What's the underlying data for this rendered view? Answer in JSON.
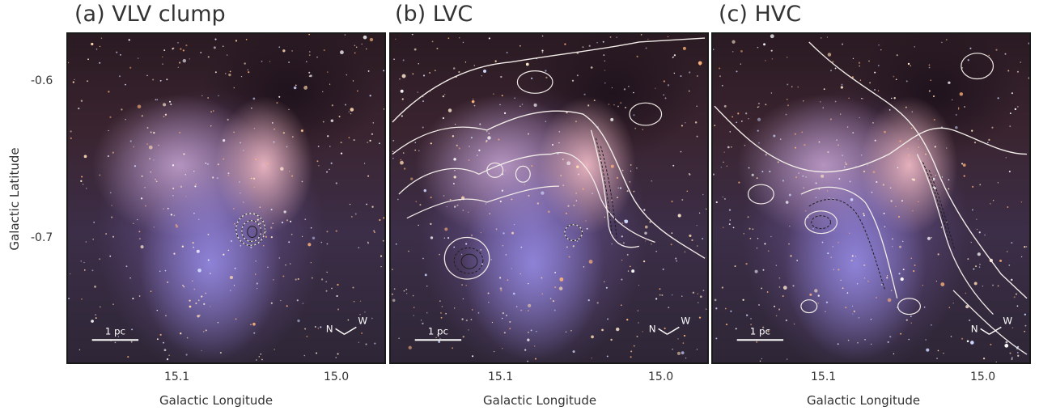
{
  "panels": [
    {
      "title": "(a) VLV clump",
      "scale_bar": "1 pc",
      "compass_n": "N",
      "compass_w": "W"
    },
    {
      "title": "(b) LVC",
      "scale_bar": "1 pc",
      "compass_n": "N",
      "compass_w": "W"
    },
    {
      "title": "(c) HVC",
      "scale_bar": "1 pc",
      "compass_n": "N",
      "compass_w": "W"
    }
  ],
  "axes": {
    "y_label": "Galactic Latitude",
    "y_ticks": [
      "-0.6",
      "-0.7"
    ],
    "x_label": "Galactic Longitude",
    "x_ticks": [
      "15.1",
      "15.0"
    ]
  },
  "colors": {
    "contour_white": "#f2ece8",
    "contour_dark": "#1e1e1e",
    "frame": "#1a1a1a"
  }
}
